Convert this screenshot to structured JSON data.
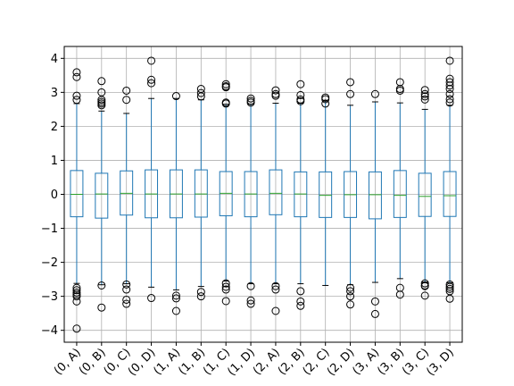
{
  "chart_data": {
    "type": "boxplot",
    "title": "",
    "xlabel": "",
    "ylabel": "",
    "ylim": [
      -4.35,
      4.35
    ],
    "yticks": [
      -4,
      -3,
      -2,
      -1,
      0,
      1,
      2,
      3,
      4
    ],
    "ytick_labels": [
      "−4",
      "−3",
      "−2",
      "−1",
      "0",
      "1",
      "2",
      "3",
      "4"
    ],
    "grid": true,
    "colors": {
      "box": "#1f77b4",
      "median": "#2ca02c",
      "grid": "#b0b0b0",
      "axes": "#000000"
    },
    "categories": [
      "(0, A)",
      "(0, B)",
      "(0, C)",
      "(0, D)",
      "(1, A)",
      "(1, B)",
      "(1, C)",
      "(1, D)",
      "(2, A)",
      "(2, B)",
      "(2, C)",
      "(2, D)",
      "(3, A)",
      "(3, B)",
      "(3, C)",
      "(3, D)"
    ],
    "boxes": [
      {
        "q1": -0.66,
        "median": 0.0,
        "q3": 0.7,
        "whislo": -2.62,
        "whishi": 2.67,
        "fliers": [
          3.59,
          3.45,
          2.9,
          2.78,
          -2.75,
          -2.82,
          -2.89,
          -2.95,
          -3.0,
          -3.15,
          -3.95
        ]
      },
      {
        "q1": -0.7,
        "median": 0.01,
        "q3": 0.62,
        "whislo": -2.66,
        "whishi": 2.45,
        "fliers": [
          3.33,
          3.0,
          2.78,
          2.72,
          2.67,
          2.62,
          -2.68,
          -3.33
        ]
      },
      {
        "q1": -0.61,
        "median": 0.03,
        "q3": 0.69,
        "whislo": -2.63,
        "whishi": 2.38,
        "fliers": [
          3.05,
          2.78,
          -2.65,
          -2.8,
          -3.1,
          -3.22
        ]
      },
      {
        "q1": -0.69,
        "median": 0.01,
        "q3": 0.72,
        "whislo": -2.73,
        "whishi": 2.82,
        "fliers": [
          3.93,
          3.37,
          3.27,
          -3.05
        ]
      },
      {
        "q1": -0.69,
        "median": 0.01,
        "q3": 0.72,
        "whislo": -2.81,
        "whishi": 2.82,
        "fliers": [
          2.89,
          -2.98,
          -3.06,
          -3.43
        ]
      },
      {
        "q1": -0.67,
        "median": 0.01,
        "q3": 0.72,
        "whislo": -2.71,
        "whishi": 2.78,
        "fliers": [
          3.1,
          2.98,
          2.88,
          -2.87,
          -3.0
        ]
      },
      {
        "q1": -0.63,
        "median": 0.03,
        "q3": 0.67,
        "whislo": -2.55,
        "whishi": 2.65,
        "fliers": [
          3.24,
          3.18,
          3.15,
          2.7,
          2.67,
          -2.62,
          -2.72,
          -2.8,
          -3.14
        ]
      },
      {
        "q1": -0.66,
        "median": 0.01,
        "q3": 0.67,
        "whislo": -2.63,
        "whishi": 2.65,
        "fliers": [
          2.82,
          2.75,
          2.7,
          -2.7,
          -3.12,
          -3.22
        ]
      },
      {
        "q1": -0.6,
        "median": 0.03,
        "q3": 0.72,
        "whislo": -2.63,
        "whishi": 2.68,
        "fliers": [
          3.06,
          2.95,
          2.9,
          -2.7,
          -2.8,
          -3.43
        ]
      },
      {
        "q1": -0.66,
        "median": 0.01,
        "q3": 0.66,
        "whislo": -2.63,
        "whishi": 2.68,
        "fliers": [
          3.24,
          2.92,
          2.79,
          2.74,
          -2.85,
          -3.15,
          -3.28
        ]
      },
      {
        "q1": -0.68,
        "median": -0.03,
        "q3": 0.66,
        "whislo": -2.68,
        "whishi": 2.74,
        "fliers": [
          2.85,
          2.8,
          2.67
        ]
      },
      {
        "q1": -0.68,
        "median": -0.01,
        "q3": 0.67,
        "whislo": -2.66,
        "whishi": 2.62,
        "fliers": [
          3.3,
          2.95,
          -2.75,
          -2.85,
          -3.0,
          -3.24
        ]
      },
      {
        "q1": -0.72,
        "median": -0.01,
        "q3": 0.66,
        "whislo": -2.59,
        "whishi": 2.72,
        "fliers": [
          2.95,
          -3.15,
          -3.52
        ]
      },
      {
        "q1": -0.68,
        "median": -0.03,
        "q3": 0.7,
        "whislo": -2.48,
        "whishi": 2.69,
        "fliers": [
          3.3,
          3.1,
          3.05,
          -2.75,
          -2.95
        ]
      },
      {
        "q1": -0.65,
        "median": -0.06,
        "q3": 0.62,
        "whislo": -2.58,
        "whishi": 2.5,
        "fliers": [
          3.07,
          2.95,
          2.88,
          2.79,
          -2.62,
          -2.68,
          -2.7,
          -2.98
        ]
      },
      {
        "q1": -0.65,
        "median": -0.04,
        "q3": 0.67,
        "whislo": -2.6,
        "whishi": 2.62,
        "fliers": [
          3.93,
          3.4,
          3.3,
          3.2,
          3.1,
          2.95,
          2.8,
          2.7,
          -2.65,
          -2.72,
          -2.78,
          -2.85,
          -3.07
        ]
      }
    ]
  }
}
